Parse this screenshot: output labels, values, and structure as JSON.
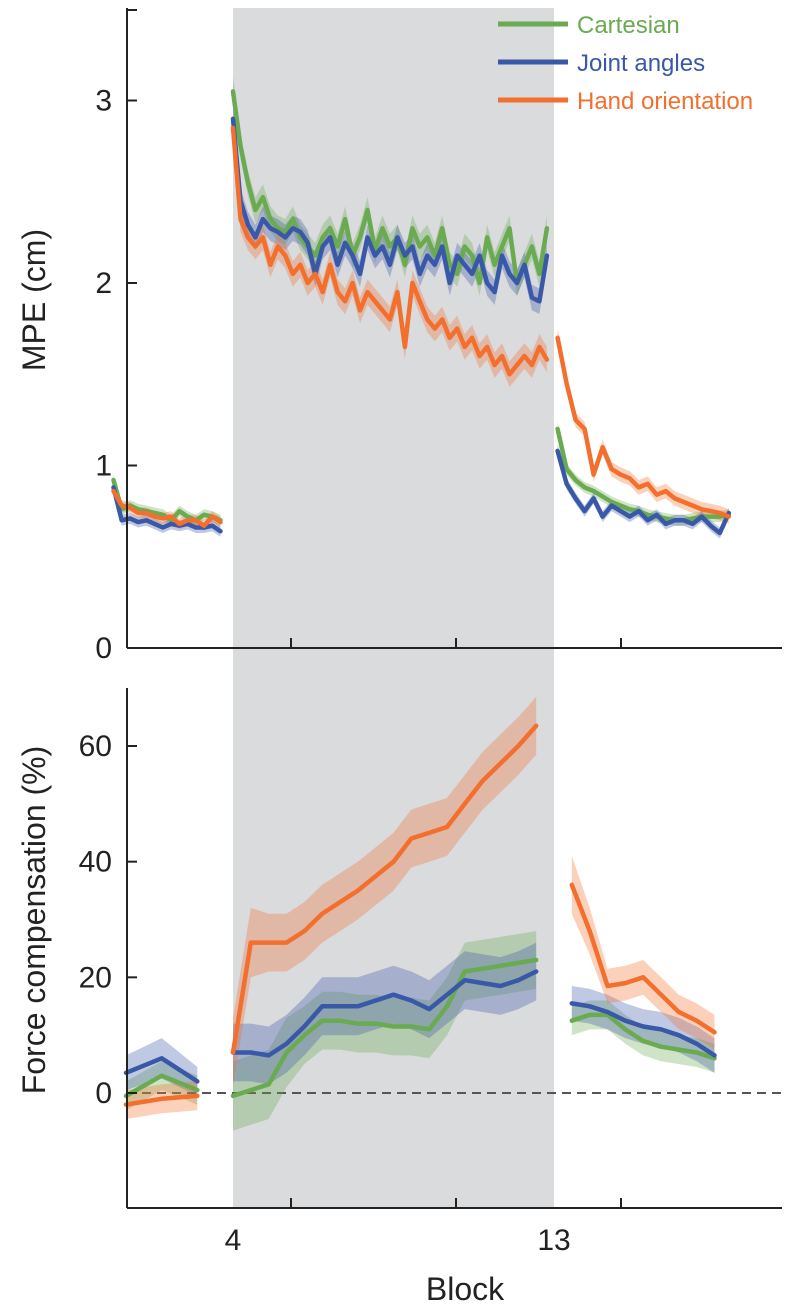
{
  "chart_data": {
    "type": "line",
    "shared_xlabel": "Block",
    "x_ticks": [
      4,
      13
    ],
    "shaded_region": {
      "from": 4,
      "to": 13
    },
    "legend": {
      "placement": "top-right",
      "entries": [
        "Cartesian",
        "Joint angles",
        "Hand orientation"
      ]
    },
    "colors": {
      "Cartesian": "#6aaa50",
      "Joint angles": "#3a58a8",
      "Hand orientation": "#f26f2e",
      "shade": "#d9dbdd"
    },
    "panels": [
      {
        "id": "mpe",
        "ylabel": "MPE (cm)",
        "ylim": [
          0,
          3.5
        ],
        "yticks": [
          0,
          1,
          2,
          3
        ],
        "segments": [
          {
            "x0": 0.65,
            "x1": 3.65,
            "series": {
              "Cartesian": {
                "values": [
                  0.92,
                  0.76,
                  0.78,
                  0.76,
                  0.75,
                  0.74,
                  0.73,
                  0.7,
                  0.75,
                  0.72,
                  0.7,
                  0.73,
                  0.72,
                  0.7
                ],
                "ci": [
                  0.03,
                  0.03,
                  0.03,
                  0.03,
                  0.03,
                  0.03,
                  0.03,
                  0.03,
                  0.03,
                  0.03,
                  0.03,
                  0.03,
                  0.03,
                  0.03
                ]
              },
              "Joint angles": {
                "values": [
                  0.88,
                  0.7,
                  0.71,
                  0.69,
                  0.7,
                  0.68,
                  0.66,
                  0.68,
                  0.67,
                  0.68,
                  0.66,
                  0.66,
                  0.67,
                  0.64
                ],
                "ci": [
                  0.03,
                  0.03,
                  0.03,
                  0.03,
                  0.03,
                  0.03,
                  0.03,
                  0.03,
                  0.03,
                  0.03,
                  0.03,
                  0.03,
                  0.03,
                  0.03
                ]
              },
              "Hand orientation": {
                "values": [
                  0.86,
                  0.78,
                  0.77,
                  0.74,
                  0.74,
                  0.72,
                  0.71,
                  0.72,
                  0.68,
                  0.7,
                  0.7,
                  0.67,
                  0.72,
                  0.69
                ],
                "ci": [
                  0.03,
                  0.03,
                  0.03,
                  0.03,
                  0.03,
                  0.03,
                  0.03,
                  0.03,
                  0.03,
                  0.03,
                  0.03,
                  0.03,
                  0.03,
                  0.03
                ]
              }
            }
          },
          {
            "x0": 4.0,
            "x1": 12.8,
            "series": {
              "Cartesian": {
                "values": [
                  3.05,
                  2.75,
                  2.55,
                  2.4,
                  2.47,
                  2.35,
                  2.3,
                  2.28,
                  2.35,
                  2.25,
                  2.2,
                  2.15,
                  2.25,
                  2.3,
                  2.2,
                  2.35,
                  2.15,
                  2.25,
                  2.4,
                  2.18,
                  2.3,
                  2.2,
                  2.25,
                  2.1,
                  2.3,
                  2.2,
                  2.25,
                  2.15,
                  2.3,
                  2.1,
                  2.05,
                  2.2,
                  2.15,
                  2.0,
                  2.25,
                  2.1,
                  2.2,
                  2.3,
                  2.0,
                  2.1,
                  2.2,
                  2.05,
                  2.3
                ],
                "ci": [
                  0.08,
                  0.07,
                  0.07,
                  0.07,
                  0.07,
                  0.07,
                  0.07,
                  0.07,
                  0.07,
                  0.07,
                  0.07,
                  0.07,
                  0.07,
                  0.07,
                  0.07,
                  0.07,
                  0.07,
                  0.07,
                  0.07,
                  0.07,
                  0.07,
                  0.07,
                  0.07,
                  0.07,
                  0.07,
                  0.07,
                  0.07,
                  0.07,
                  0.07,
                  0.07,
                  0.07,
                  0.07,
                  0.07,
                  0.07,
                  0.07,
                  0.07,
                  0.07,
                  0.07,
                  0.07,
                  0.07,
                  0.07,
                  0.07,
                  0.07
                ]
              },
              "Joint angles": {
                "values": [
                  2.9,
                  2.45,
                  2.32,
                  2.25,
                  2.35,
                  2.3,
                  2.28,
                  2.25,
                  2.3,
                  2.28,
                  2.22,
                  2.05,
                  2.2,
                  2.25,
                  2.1,
                  2.22,
                  2.15,
                  2.05,
                  2.25,
                  2.15,
                  2.2,
                  2.1,
                  2.25,
                  2.15,
                  2.2,
                  2.05,
                  2.15,
                  2.1,
                  2.2,
                  2.0,
                  2.15,
                  2.1,
                  2.05,
                  2.15,
                  2.0,
                  1.95,
                  2.15,
                  2.05,
                  2.0,
                  2.1,
                  1.92,
                  1.9,
                  2.15
                ],
                "ci": [
                  0.08,
                  0.07,
                  0.07,
                  0.07,
                  0.07,
                  0.07,
                  0.07,
                  0.07,
                  0.07,
                  0.07,
                  0.07,
                  0.07,
                  0.07,
                  0.07,
                  0.07,
                  0.07,
                  0.07,
                  0.07,
                  0.07,
                  0.07,
                  0.07,
                  0.07,
                  0.07,
                  0.07,
                  0.07,
                  0.07,
                  0.07,
                  0.07,
                  0.07,
                  0.07,
                  0.07,
                  0.07,
                  0.07,
                  0.07,
                  0.07,
                  0.07,
                  0.07,
                  0.07,
                  0.07,
                  0.07,
                  0.07,
                  0.07,
                  0.07
                ]
              },
              "Hand orientation": {
                "values": [
                  2.85,
                  2.35,
                  2.25,
                  2.2,
                  2.25,
                  2.1,
                  2.2,
                  2.15,
                  2.05,
                  2.1,
                  2.0,
                  2.05,
                  1.95,
                  2.1,
                  1.95,
                  1.9,
                  2.0,
                  1.85,
                  1.95,
                  1.9,
                  1.85,
                  1.8,
                  1.95,
                  1.65,
                  2.0,
                  1.9,
                  1.8,
                  1.75,
                  1.8,
                  1.7,
                  1.75,
                  1.65,
                  1.7,
                  1.6,
                  1.65,
                  1.55,
                  1.6,
                  1.5,
                  1.55,
                  1.6,
                  1.55,
                  1.65,
                  1.58
                ],
                "ci": [
                  0.07,
                  0.07,
                  0.07,
                  0.07,
                  0.07,
                  0.07,
                  0.07,
                  0.07,
                  0.07,
                  0.07,
                  0.07,
                  0.07,
                  0.07,
                  0.07,
                  0.07,
                  0.07,
                  0.07,
                  0.07,
                  0.07,
                  0.07,
                  0.07,
                  0.07,
                  0.07,
                  0.07,
                  0.07,
                  0.07,
                  0.07,
                  0.07,
                  0.07,
                  0.07,
                  0.07,
                  0.07,
                  0.07,
                  0.07,
                  0.07,
                  0.07,
                  0.07,
                  0.07,
                  0.07,
                  0.07,
                  0.07,
                  0.07,
                  0.07
                ]
              }
            }
          },
          {
            "x0": 13.1,
            "x1": 17.9,
            "series": {
              "Cartesian": {
                "values": [
                  1.2,
                  0.98,
                  0.92,
                  0.88,
                  0.86,
                  0.83,
                  0.8,
                  0.78,
                  0.76,
                  0.75,
                  0.73,
                  0.72,
                  0.71,
                  0.7,
                  0.7,
                  0.71,
                  0.72,
                  0.72,
                  0.72,
                  0.73
                ],
                "ci": [
                  0.04,
                  0.03,
                  0.03,
                  0.03,
                  0.03,
                  0.03,
                  0.03,
                  0.03,
                  0.03,
                  0.03,
                  0.03,
                  0.03,
                  0.03,
                  0.03,
                  0.03,
                  0.03,
                  0.03,
                  0.03,
                  0.03,
                  0.03
                ]
              },
              "Joint angles": {
                "values": [
                  1.08,
                  0.9,
                  0.82,
                  0.75,
                  0.82,
                  0.72,
                  0.78,
                  0.75,
                  0.72,
                  0.75,
                  0.7,
                  0.73,
                  0.68,
                  0.7,
                  0.7,
                  0.68,
                  0.72,
                  0.67,
                  0.63,
                  0.74
                ],
                "ci": [
                  0.04,
                  0.03,
                  0.03,
                  0.03,
                  0.03,
                  0.03,
                  0.03,
                  0.03,
                  0.03,
                  0.03,
                  0.03,
                  0.03,
                  0.03,
                  0.03,
                  0.03,
                  0.03,
                  0.03,
                  0.03,
                  0.03,
                  0.03
                ]
              },
              "Hand orientation": {
                "values": [
                  1.7,
                  1.45,
                  1.25,
                  1.2,
                  0.95,
                  1.1,
                  0.98,
                  0.95,
                  0.93,
                  0.88,
                  0.9,
                  0.84,
                  0.86,
                  0.82,
                  0.8,
                  0.78,
                  0.76,
                  0.75,
                  0.74,
                  0.72
                ],
                "ci": [
                  0.05,
                  0.04,
                  0.04,
                  0.04,
                  0.04,
                  0.04,
                  0.04,
                  0.04,
                  0.04,
                  0.04,
                  0.04,
                  0.04,
                  0.04,
                  0.04,
                  0.04,
                  0.04,
                  0.04,
                  0.04,
                  0.04,
                  0.04
                ]
              }
            }
          }
        ]
      },
      {
        "id": "fc",
        "ylabel": "Force compensation (%)",
        "ylim": [
          -18,
          70
        ],
        "yticks": [
          0,
          20,
          40,
          60
        ],
        "zero_line": true,
        "segments": [
          {
            "x": [
              1.0,
              2.0,
              3.0
            ],
            "series": {
              "Cartesian": {
                "values": [
                  -0.5,
                  3.0,
                  0.5
                ],
                "ci": [
                  2.5,
                  2.5,
                  2.5
                ]
              },
              "Joint angles": {
                "values": [
                  3.5,
                  6.0,
                  2.0
                ],
                "ci": [
                  3.0,
                  3.5,
                  2.5
                ]
              },
              "Hand orientation": {
                "values": [
                  -2.0,
                  -1.0,
                  -0.5
                ],
                "ci": [
                  2.5,
                  2.5,
                  2.5
                ]
              }
            }
          },
          {
            "x": [
              4.0,
              4.5,
              5.0,
              5.5,
              6.0,
              6.5,
              7.0,
              7.5,
              8.0,
              8.5,
              9.0,
              9.5,
              10.0,
              10.5,
              11.0,
              11.5,
              12.0,
              12.5
            ],
            "series": {
              "Cartesian": {
                "values": [
                  -0.5,
                  0.5,
                  1.5,
                  7.0,
                  10.0,
                  12.5,
                  12.5,
                  12.0,
                  12.0,
                  11.5,
                  11.5,
                  11.0,
                  15.0,
                  21.0,
                  21.5,
                  22.0,
                  22.5,
                  23.0
                ],
                "ci": [
                  6,
                  6,
                  6,
                  6,
                  5,
                  5,
                  5,
                  5,
                  5,
                  5,
                  5,
                  5,
                  5,
                  5,
                  5,
                  5,
                  5,
                  5
                ]
              },
              "Joint angles": {
                "values": [
                  7.0,
                  7.0,
                  6.5,
                  8.5,
                  11.5,
                  15.0,
                  15.0,
                  15.0,
                  16.0,
                  17.0,
                  16.0,
                  14.5,
                  17.0,
                  19.5,
                  19.0,
                  18.5,
                  19.5,
                  21.0
                ],
                "ci": [
                  5,
                  5,
                  5,
                  5,
                  5,
                  5,
                  5,
                  5,
                  5,
                  5,
                  5,
                  5,
                  5,
                  5,
                  5,
                  5,
                  5,
                  5
                ]
              },
              "Hand orientation": {
                "values": [
                  7.0,
                  26.0,
                  26.0,
                  26.0,
                  28.0,
                  31.0,
                  33.0,
                  35.0,
                  37.5,
                  40.0,
                  44.0,
                  45.0,
                  46.0,
                  50.0,
                  54.0,
                  57.0,
                  60.0,
                  63.5
                ],
                "ci": [
                  6,
                  6,
                  5,
                  5,
                  5,
                  5,
                  5,
                  5,
                  5,
                  5,
                  5,
                  5,
                  5,
                  5,
                  5,
                  5,
                  5,
                  5
                ]
              }
            }
          },
          {
            "x": [
              13.5,
              14.0,
              14.5,
              15.0,
              15.5,
              16.0,
              16.5,
              17.0,
              17.5
            ],
            "series": {
              "Cartesian": {
                "values": [
                  12.5,
                  13.5,
                  13.5,
                  11.0,
                  9.0,
                  8.0,
                  7.5,
                  7.0,
                  6.0
                ],
                "ci": [
                  2.5,
                  2.5,
                  2.5,
                  2.5,
                  2.5,
                  2.5,
                  2.5,
                  2.5,
                  2.5
                ]
              },
              "Joint angles": {
                "values": [
                  15.5,
                  15.0,
                  14.0,
                  12.5,
                  11.5,
                  11.0,
                  10.0,
                  8.5,
                  6.5
                ],
                "ci": [
                  3,
                  3,
                  3,
                  3,
                  3,
                  3,
                  3,
                  3,
                  3
                ]
              },
              "Hand orientation": {
                "values": [
                  36.0,
                  28.0,
                  18.5,
                  19.0,
                  20.0,
                  17.0,
                  14.0,
                  12.5,
                  10.5
                ],
                "ci": [
                  5,
                  4,
                  3,
                  3,
                  3,
                  3,
                  3,
                  3,
                  3
                ]
              }
            }
          }
        ]
      }
    ]
  }
}
